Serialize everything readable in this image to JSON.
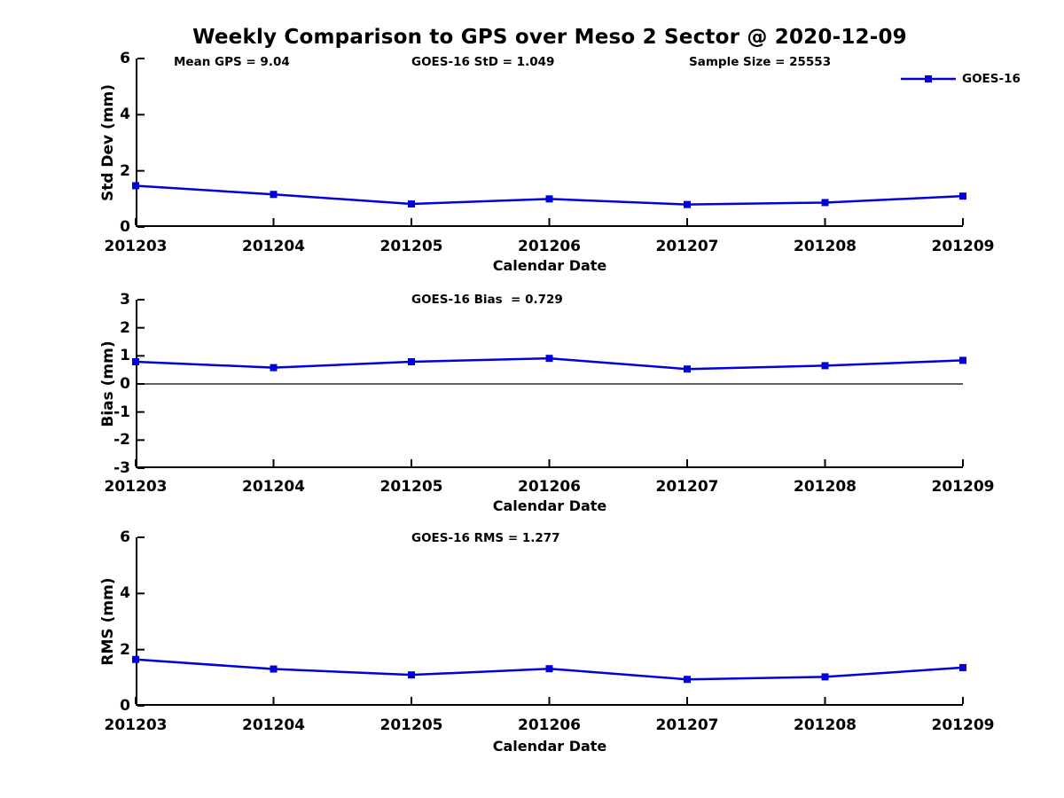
{
  "title": "Weekly Comparison to GPS over Meso 2 Sector @ 2020-12-09",
  "annotations": {
    "mean_gps": "Mean GPS = 9.04",
    "std": "GOES-16 StD = 1.049",
    "sample_size": "Sample Size = 25553",
    "bias": "GOES-16 Bias  = 0.729",
    "rms": "GOES-16 RMS = 1.277"
  },
  "legend": {
    "label": "GOES-16",
    "position": "top-right",
    "marker": "square"
  },
  "colors": {
    "series": "#0000dd",
    "axis": "#000000",
    "zero_line": "#000000",
    "background": "#ffffff",
    "text": "#000000"
  },
  "chart_data": [
    {
      "type": "line",
      "categories": [
        "201203",
        "201204",
        "201205",
        "201206",
        "201207",
        "201208",
        "201209"
      ],
      "series": [
        {
          "name": "GOES-16",
          "values": [
            1.47,
            1.16,
            0.82,
            1.0,
            0.8,
            0.87,
            1.1
          ]
        }
      ],
      "xlabel": "Calendar Date",
      "ylabel": "Std Dev (mm)",
      "ylim": [
        0,
        6
      ],
      "yticks": [
        0,
        2,
        4,
        6
      ],
      "grid": false,
      "zero_line": false,
      "marker": "square"
    },
    {
      "type": "line",
      "categories": [
        "201203",
        "201204",
        "201205",
        "201206",
        "201207",
        "201208",
        "201209"
      ],
      "series": [
        {
          "name": "GOES-16",
          "values": [
            0.79,
            0.58,
            0.79,
            0.91,
            0.53,
            0.65,
            0.84
          ]
        }
      ],
      "xlabel": "Calendar Date",
      "ylabel": "Bias (mm)",
      "ylim": [
        -3,
        3
      ],
      "yticks": [
        -3,
        -2,
        -1,
        0,
        1,
        2,
        3
      ],
      "grid": false,
      "zero_line": true,
      "marker": "square"
    },
    {
      "type": "line",
      "categories": [
        "201203",
        "201204",
        "201205",
        "201206",
        "201207",
        "201208",
        "201209"
      ],
      "series": [
        {
          "name": "GOES-16",
          "values": [
            1.65,
            1.31,
            1.1,
            1.32,
            0.94,
            1.03,
            1.36
          ]
        }
      ],
      "xlabel": "Calendar Date",
      "ylabel": "RMS (mm)",
      "ylim": [
        0,
        6
      ],
      "yticks": [
        0,
        2,
        4,
        6
      ],
      "grid": false,
      "zero_line": false,
      "marker": "square"
    }
  ]
}
